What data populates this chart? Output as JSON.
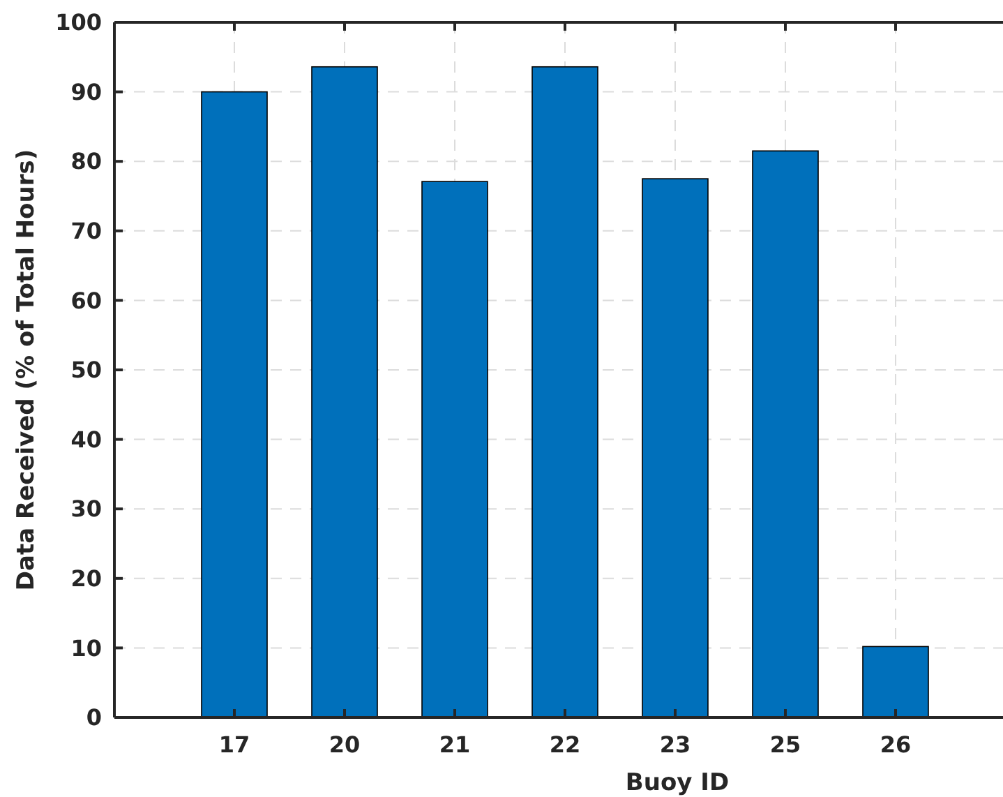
{
  "chart_data": {
    "type": "bar",
    "xlabel": "Buoy ID",
    "ylabel": "Data Received (% of Total Hours)",
    "categories": [
      "17",
      "20",
      "21",
      "22",
      "23",
      "25",
      "26"
    ],
    "values": [
      90.0,
      93.6,
      77.1,
      93.6,
      77.5,
      81.5,
      10.2
    ],
    "color": "#0070bb",
    "ylim": [
      0,
      100
    ],
    "yticks": [
      0,
      10,
      20,
      30,
      40,
      50,
      60,
      70,
      80,
      90,
      100
    ],
    "grid": true
  }
}
